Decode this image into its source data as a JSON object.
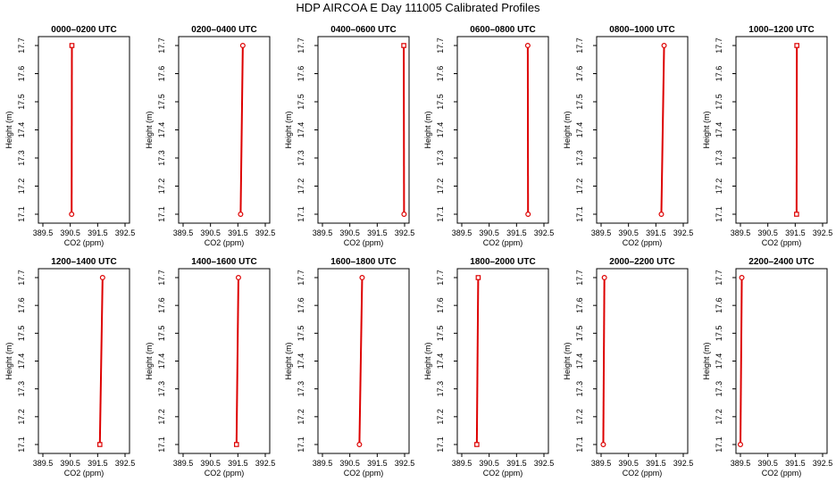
{
  "title": "HDP AIRCOA E  Day 111005  Calibrated Profiles",
  "colors": {
    "profile": "#dd0000",
    "axis": "#000000",
    "background": "#ffffff"
  },
  "chart_data": [
    {
      "type": "line",
      "title": "0000–0200 UTC",
      "xlabel": "CO2 (ppm)",
      "ylabel": "Height (m)",
      "xlim": [
        389.5,
        392.5
      ],
      "ylim": [
        17.1,
        17.7
      ],
      "xticks": [
        "389.5",
        "390.5",
        "391.5",
        "392.5"
      ],
      "yticks": [
        "17.1",
        "17.2",
        "17.3",
        "17.4",
        "17.5",
        "17.6",
        "17.7"
      ],
      "points": [
        [
          390.55,
          17.1
        ],
        [
          390.56,
          17.7
        ]
      ],
      "markers": [
        "circle",
        "square"
      ]
    },
    {
      "type": "line",
      "title": "0200–0400 UTC",
      "xlabel": "CO2 (ppm)",
      "ylabel": "Height (m)",
      "xlim": [
        389.5,
        392.5
      ],
      "ylim": [
        17.1,
        17.7
      ],
      "xticks": [
        "389.5",
        "390.5",
        "391.5",
        "392.5"
      ],
      "yticks": [
        "17.1",
        "17.2",
        "17.3",
        "17.4",
        "17.5",
        "17.6",
        "17.7"
      ],
      "points": [
        [
          391.6,
          17.1
        ],
        [
          391.68,
          17.7
        ]
      ],
      "markers": [
        "circle",
        "circle"
      ]
    },
    {
      "type": "line",
      "title": "0400–0600 UTC",
      "xlabel": "CO2 (ppm)",
      "ylabel": "Height (m)",
      "xlim": [
        389.5,
        392.5
      ],
      "ylim": [
        17.1,
        17.7
      ],
      "xticks": [
        "389.5",
        "390.5",
        "391.5",
        "392.5"
      ],
      "yticks": [
        "17.1",
        "17.2",
        "17.3",
        "17.4",
        "17.5",
        "17.6",
        "17.7"
      ],
      "points": [
        [
          392.48,
          17.1
        ],
        [
          392.47,
          17.7
        ]
      ],
      "markers": [
        "circle",
        "square"
      ]
    },
    {
      "type": "line",
      "title": "0600–0800 UTC",
      "xlabel": "CO2 (ppm)",
      "ylabel": "Height (m)",
      "xlim": [
        389.5,
        392.5
      ],
      "ylim": [
        17.1,
        17.7
      ],
      "xticks": [
        "389.5",
        "390.5",
        "391.5",
        "392.5"
      ],
      "yticks": [
        "17.1",
        "17.2",
        "17.3",
        "17.4",
        "17.5",
        "17.6",
        "17.7"
      ],
      "points": [
        [
          391.92,
          17.1
        ],
        [
          391.91,
          17.7
        ]
      ],
      "markers": [
        "circle",
        "circle"
      ]
    },
    {
      "type": "line",
      "title": "0800–1000 UTC",
      "xlabel": "CO2 (ppm)",
      "ylabel": "Height (m)",
      "xlim": [
        389.5,
        392.5
      ],
      "ylim": [
        17.1,
        17.7
      ],
      "xticks": [
        "389.5",
        "390.5",
        "391.5",
        "392.5"
      ],
      "yticks": [
        "17.1",
        "17.2",
        "17.3",
        "17.4",
        "17.5",
        "17.6",
        "17.7"
      ],
      "points": [
        [
          391.7,
          17.1
        ],
        [
          391.8,
          17.7
        ]
      ],
      "markers": [
        "circle",
        "circle"
      ]
    },
    {
      "type": "line",
      "title": "1000–1200 UTC",
      "xlabel": "CO2 (ppm)",
      "ylabel": "Height (m)",
      "xlim": [
        389.5,
        392.5
      ],
      "ylim": [
        17.1,
        17.7
      ],
      "xticks": [
        "389.5",
        "390.5",
        "391.5",
        "392.5"
      ],
      "yticks": [
        "17.1",
        "17.2",
        "17.3",
        "17.4",
        "17.5",
        "17.6",
        "17.7"
      ],
      "points": [
        [
          391.55,
          17.1
        ],
        [
          391.56,
          17.7
        ]
      ],
      "markers": [
        "square",
        "square"
      ]
    },
    {
      "type": "line",
      "title": "1200–1400 UTC",
      "xlabel": "CO2 (ppm)",
      "ylabel": "Height (m)",
      "xlim": [
        389.5,
        392.5
      ],
      "ylim": [
        17.1,
        17.7
      ],
      "xticks": [
        "389.5",
        "390.5",
        "391.5",
        "392.5"
      ],
      "yticks": [
        "17.1",
        "17.2",
        "17.3",
        "17.4",
        "17.5",
        "17.6",
        "17.7"
      ],
      "points": [
        [
          391.58,
          17.1
        ],
        [
          391.68,
          17.7
        ]
      ],
      "markers": [
        "square",
        "circle"
      ]
    },
    {
      "type": "line",
      "title": "1400–1600 UTC",
      "xlabel": "CO2 (ppm)",
      "ylabel": "Height (m)",
      "xlim": [
        389.5,
        392.5
      ],
      "ylim": [
        17.1,
        17.7
      ],
      "xticks": [
        "389.5",
        "390.5",
        "391.5",
        "392.5"
      ],
      "yticks": [
        "17.1",
        "17.2",
        "17.3",
        "17.4",
        "17.5",
        "17.6",
        "17.7"
      ],
      "points": [
        [
          391.45,
          17.1
        ],
        [
          391.52,
          17.7
        ]
      ],
      "markers": [
        "square",
        "circle"
      ]
    },
    {
      "type": "line",
      "title": "1600–1800 UTC",
      "xlabel": "CO2 (ppm)",
      "ylabel": "Height (m)",
      "xlim": [
        389.5,
        392.5
      ],
      "ylim": [
        17.1,
        17.7
      ],
      "xticks": [
        "389.5",
        "390.5",
        "391.5",
        "392.5"
      ],
      "yticks": [
        "17.1",
        "17.2",
        "17.3",
        "17.4",
        "17.5",
        "17.6",
        "17.7"
      ],
      "points": [
        [
          390.85,
          17.1
        ],
        [
          390.95,
          17.7
        ]
      ],
      "markers": [
        "circle",
        "circle"
      ]
    },
    {
      "type": "line",
      "title": "1800–2000 UTC",
      "xlabel": "CO2 (ppm)",
      "ylabel": "Height (m)",
      "xlim": [
        389.5,
        392.5
      ],
      "ylim": [
        17.1,
        17.7
      ],
      "xticks": [
        "389.5",
        "390.5",
        "391.5",
        "392.5"
      ],
      "yticks": [
        "17.1",
        "17.2",
        "17.3",
        "17.4",
        "17.5",
        "17.6",
        "17.7"
      ],
      "points": [
        [
          390.05,
          17.1
        ],
        [
          390.1,
          17.7
        ]
      ],
      "markers": [
        "square",
        "square"
      ]
    },
    {
      "type": "line",
      "title": "2000–2200 UTC",
      "xlabel": "CO2 (ppm)",
      "ylabel": "Height (m)",
      "xlim": [
        389.5,
        392.5
      ],
      "ylim": [
        17.1,
        17.7
      ],
      "xticks": [
        "389.5",
        "390.5",
        "391.5",
        "392.5"
      ],
      "yticks": [
        "17.1",
        "17.2",
        "17.3",
        "17.4",
        "17.5",
        "17.6",
        "17.7"
      ],
      "points": [
        [
          389.58,
          17.1
        ],
        [
          389.62,
          17.7
        ]
      ],
      "markers": [
        "circle",
        "circle"
      ]
    },
    {
      "type": "line",
      "title": "2200–2400 UTC",
      "xlabel": "CO2 (ppm)",
      "ylabel": "Height (m)",
      "xlim": [
        389.5,
        392.5
      ],
      "ylim": [
        17.1,
        17.7
      ],
      "xticks": [
        "389.5",
        "390.5",
        "391.5",
        "392.5"
      ],
      "yticks": [
        "17.1",
        "17.2",
        "17.3",
        "17.4",
        "17.5",
        "17.6",
        "17.7"
      ],
      "points": [
        [
          389.5,
          17.1
        ],
        [
          389.55,
          17.7
        ]
      ],
      "markers": [
        "circle",
        "circle"
      ]
    }
  ]
}
